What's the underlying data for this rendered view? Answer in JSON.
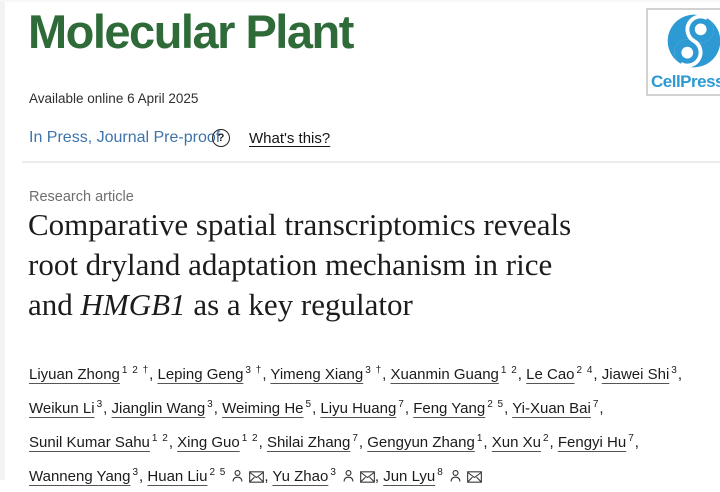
{
  "journal": {
    "name": "Molecular Plant"
  },
  "publisher": {
    "name": "CellPress",
    "logo_icon": "cellpress-swirl-icon",
    "brand_blue": "#2d9ad3"
  },
  "colors": {
    "journal_green": "#2e6b39",
    "link_blue": "#3e74ab",
    "divider_gray": "#ececec"
  },
  "meta": {
    "available_online": "Available online 6 April 2025"
  },
  "status": {
    "in_press_label": "In Press, Journal Pre-proof",
    "help_icon": "question-circle-icon",
    "help_glyph": "?",
    "whats_this_label": "What's this?"
  },
  "article": {
    "section_label": "Research article",
    "title_line1": "Comparative spatial transcriptomics reveals",
    "title_line2": "root dryland adaptation mechanism in rice",
    "title_line3_before_italic": "and ",
    "title_line3_italic": "HMGB1",
    "title_line3_after_italic": " as a key regulator"
  },
  "author_icons": {
    "corresponding": "person-icon",
    "email": "envelope-icon"
  },
  "authors": [
    {
      "name": "Liyuan Zhong",
      "sup": "1 2 †",
      "corresponding": false
    },
    {
      "name": "Leping Geng",
      "sup": "3 †",
      "corresponding": false
    },
    {
      "name": "Yimeng Xiang",
      "sup": "3 †",
      "corresponding": false
    },
    {
      "name": "Xuanmin Guang",
      "sup": "1 2",
      "corresponding": false
    },
    {
      "name": "Le Cao",
      "sup": "2 4",
      "corresponding": false
    },
    {
      "name": "Jiawei Shi",
      "sup": "3",
      "corresponding": false
    },
    {
      "name": "Weikun Li",
      "sup": "3",
      "corresponding": false
    },
    {
      "name": "Jianglin Wang",
      "sup": "3",
      "corresponding": false
    },
    {
      "name": "Weiming He",
      "sup": "5",
      "corresponding": false
    },
    {
      "name": "Liyu Huang",
      "sup": "7",
      "corresponding": false
    },
    {
      "name": "Feng Yang",
      "sup": "2 5",
      "corresponding": false
    },
    {
      "name": "Yi-Xuan Bai",
      "sup": "7",
      "corresponding": false
    },
    {
      "name": "Sunil Kumar Sahu",
      "sup": "1 2",
      "corresponding": false
    },
    {
      "name": "Xing Guo",
      "sup": "1 2",
      "corresponding": false
    },
    {
      "name": "Shilai Zhang",
      "sup": "7",
      "corresponding": false
    },
    {
      "name": "Gengyun Zhang",
      "sup": "1",
      "corresponding": false
    },
    {
      "name": "Xun Xu",
      "sup": "2",
      "corresponding": false
    },
    {
      "name": "Fengyi Hu",
      "sup": "7",
      "corresponding": false
    },
    {
      "name": "Wanneng Yang",
      "sup": "3",
      "corresponding": false
    },
    {
      "name": "Huan Liu",
      "sup": "2 5",
      "corresponding": true
    },
    {
      "name": "Yu Zhao",
      "sup": "3",
      "corresponding": true
    },
    {
      "name": "Jun Lyu",
      "sup": "8",
      "corresponding": true
    }
  ]
}
